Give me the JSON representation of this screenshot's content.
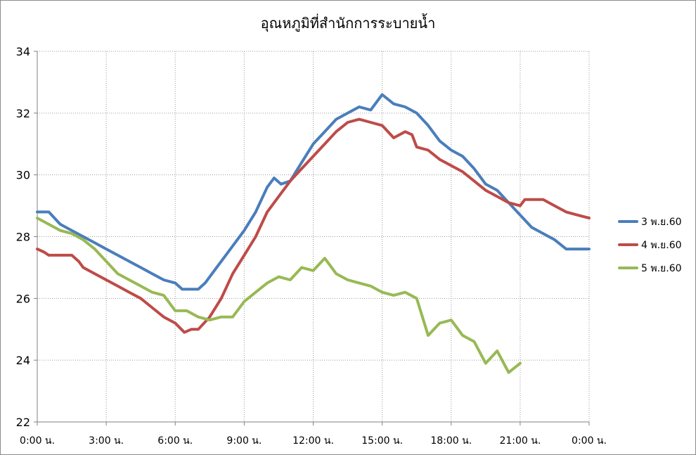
{
  "chart_data": {
    "type": "line",
    "title": "อุณหภูมิที่สำนักการระบายน้ำ",
    "xlabel": "",
    "ylabel": "",
    "xlim": [
      0,
      24
    ],
    "ylim": [
      22,
      34
    ],
    "yticks": [
      22,
      24,
      26,
      28,
      30,
      32,
      34
    ],
    "xticks": [
      0,
      3,
      6,
      9,
      12,
      15,
      18,
      21,
      24
    ],
    "xtick_labels": [
      "0:00 น.",
      "3:00 น.",
      "6:00 น.",
      "9:00 น.",
      "12:00 น.",
      "15:00 น.",
      "18:00 น.",
      "21:00 น.",
      "0:00 น."
    ],
    "grid": true,
    "legend_position": "right",
    "series": [
      {
        "name": "3 พ.ย.60",
        "color": "#4a7ebb",
        "points": [
          [
            0,
            28.8
          ],
          [
            0.5,
            28.8
          ],
          [
            1,
            28.4
          ],
          [
            1.5,
            28.2
          ],
          [
            2,
            28.0
          ],
          [
            2.5,
            27.8
          ],
          [
            3,
            27.6
          ],
          [
            3.5,
            27.4
          ],
          [
            4,
            27.2
          ],
          [
            4.5,
            27.0
          ],
          [
            5,
            26.8
          ],
          [
            5.5,
            26.6
          ],
          [
            6,
            26.5
          ],
          [
            6.3,
            26.3
          ],
          [
            7,
            26.3
          ],
          [
            7.3,
            26.5
          ],
          [
            7.8,
            27.0
          ],
          [
            8.2,
            27.4
          ],
          [
            8.6,
            27.8
          ],
          [
            9,
            28.2
          ],
          [
            9.5,
            28.8
          ],
          [
            10,
            29.6
          ],
          [
            10.3,
            29.9
          ],
          [
            10.6,
            29.7
          ],
          [
            11,
            29.8
          ],
          [
            11.5,
            30.4
          ],
          [
            12,
            31.0
          ],
          [
            12.5,
            31.4
          ],
          [
            13,
            31.8
          ],
          [
            13.5,
            32.0
          ],
          [
            14,
            32.2
          ],
          [
            14.5,
            32.1
          ],
          [
            15,
            32.6
          ],
          [
            15.5,
            32.3
          ],
          [
            16,
            32.2
          ],
          [
            16.5,
            32.0
          ],
          [
            17,
            31.6
          ],
          [
            17.5,
            31.1
          ],
          [
            18,
            30.8
          ],
          [
            18.5,
            30.6
          ],
          [
            19,
            30.2
          ],
          [
            19.5,
            29.7
          ],
          [
            20,
            29.5
          ],
          [
            20.5,
            29.1
          ],
          [
            21,
            28.7
          ],
          [
            21.5,
            28.3
          ],
          [
            22,
            28.1
          ],
          [
            22.5,
            27.9
          ],
          [
            23,
            27.6
          ],
          [
            24,
            27.6
          ]
        ]
      },
      {
        "name": "4 พ.ย.60",
        "color": "#be4b48",
        "points": [
          [
            0,
            27.6
          ],
          [
            0.3,
            27.5
          ],
          [
            0.5,
            27.4
          ],
          [
            1.5,
            27.4
          ],
          [
            1.8,
            27.2
          ],
          [
            2,
            27.0
          ],
          [
            2.5,
            26.8
          ],
          [
            3,
            26.6
          ],
          [
            3.5,
            26.4
          ],
          [
            4,
            26.2
          ],
          [
            4.5,
            26.0
          ],
          [
            5,
            25.7
          ],
          [
            5.5,
            25.4
          ],
          [
            6,
            25.2
          ],
          [
            6.4,
            24.9
          ],
          [
            6.7,
            25.0
          ],
          [
            7,
            25.0
          ],
          [
            7.5,
            25.4
          ],
          [
            8,
            26.0
          ],
          [
            8.5,
            26.8
          ],
          [
            9,
            27.4
          ],
          [
            9.5,
            28.0
          ],
          [
            10,
            28.8
          ],
          [
            10.5,
            29.3
          ],
          [
            11,
            29.8
          ],
          [
            11.5,
            30.2
          ],
          [
            12,
            30.6
          ],
          [
            12.5,
            31.0
          ],
          [
            13,
            31.4
          ],
          [
            13.5,
            31.7
          ],
          [
            14,
            31.8
          ],
          [
            14.5,
            31.7
          ],
          [
            15,
            31.6
          ],
          [
            15.5,
            31.2
          ],
          [
            16,
            31.4
          ],
          [
            16.3,
            31.3
          ],
          [
            16.5,
            30.9
          ],
          [
            17,
            30.8
          ],
          [
            17.5,
            30.5
          ],
          [
            18,
            30.3
          ],
          [
            18.5,
            30.1
          ],
          [
            19,
            29.8
          ],
          [
            19.5,
            29.5
          ],
          [
            20,
            29.3
          ],
          [
            20.5,
            29.1
          ],
          [
            21,
            29.0
          ],
          [
            21.2,
            29.2
          ],
          [
            22,
            29.2
          ],
          [
            22.5,
            29.0
          ],
          [
            23,
            28.8
          ],
          [
            23.5,
            28.7
          ],
          [
            24,
            28.6
          ]
        ]
      },
      {
        "name": "5 พ.ย.60",
        "color": "#98b954",
        "points": [
          [
            0,
            28.6
          ],
          [
            0.5,
            28.4
          ],
          [
            1,
            28.2
          ],
          [
            1.5,
            28.1
          ],
          [
            2,
            27.9
          ],
          [
            2.5,
            27.6
          ],
          [
            3,
            27.2
          ],
          [
            3.5,
            26.8
          ],
          [
            4,
            26.6
          ],
          [
            4.5,
            26.4
          ],
          [
            5,
            26.2
          ],
          [
            5.5,
            26.1
          ],
          [
            6,
            25.6
          ],
          [
            6.5,
            25.6
          ],
          [
            7,
            25.4
          ],
          [
            7.5,
            25.3
          ],
          [
            8,
            25.4
          ],
          [
            8.5,
            25.4
          ],
          [
            9,
            25.9
          ],
          [
            9.5,
            26.2
          ],
          [
            10,
            26.5
          ],
          [
            10.5,
            26.7
          ],
          [
            11,
            26.6
          ],
          [
            11.5,
            27.0
          ],
          [
            12,
            26.9
          ],
          [
            12.5,
            27.3
          ],
          [
            13,
            26.8
          ],
          [
            13.5,
            26.6
          ],
          [
            14,
            26.5
          ],
          [
            14.5,
            26.4
          ],
          [
            15,
            26.2
          ],
          [
            15.5,
            26.1
          ],
          [
            16,
            26.2
          ],
          [
            16.5,
            26.0
          ],
          [
            17,
            24.8
          ],
          [
            17.5,
            25.2
          ],
          [
            18,
            25.3
          ],
          [
            18.5,
            24.8
          ],
          [
            19,
            24.6
          ],
          [
            19.5,
            23.9
          ],
          [
            20,
            24.3
          ],
          [
            20.5,
            23.6
          ],
          [
            21,
            23.9
          ]
        ]
      }
    ]
  }
}
